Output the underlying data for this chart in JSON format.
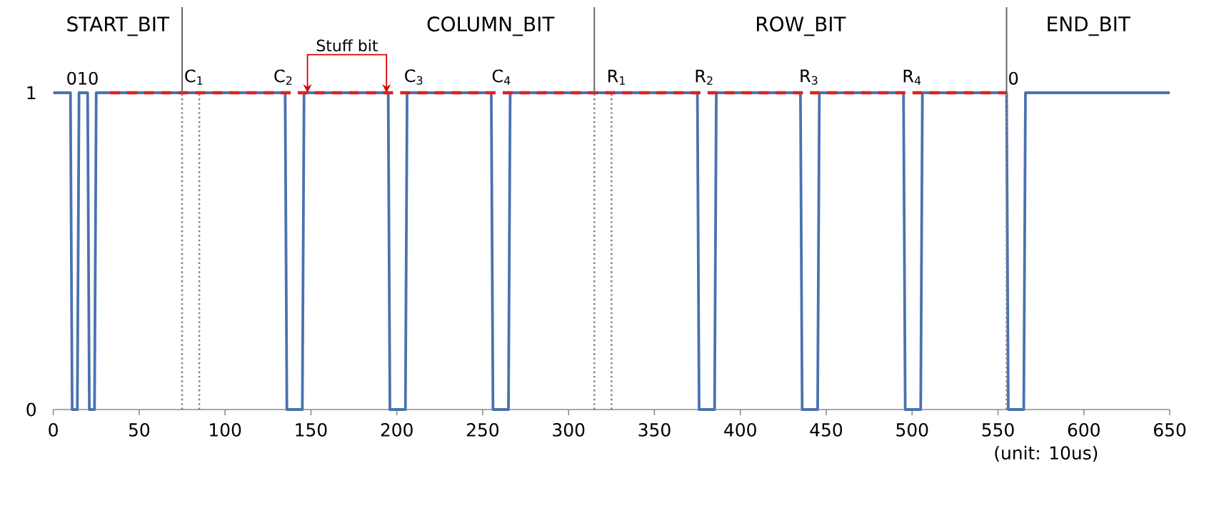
{
  "chart_data": {
    "type": "line",
    "xlabel": "(unit: 10us)",
    "xlim": [
      0,
      650
    ],
    "xticks": [
      0,
      50,
      100,
      150,
      200,
      250,
      300,
      350,
      400,
      450,
      500,
      550,
      600,
      650
    ],
    "ylim": [
      0,
      1
    ],
    "yticks": [
      0,
      1
    ],
    "grid": false,
    "marker": "none",
    "series": [
      {
        "color": "#4a72b0",
        "line_style": "solid",
        "x": [
          0,
          10,
          11,
          14,
          15,
          20,
          21,
          24,
          25,
          135,
          136,
          145,
          146,
          195,
          196,
          205,
          206,
          255,
          256,
          265,
          266,
          375,
          376,
          385,
          386,
          435,
          436,
          445,
          446,
          495,
          496,
          505,
          506,
          555,
          556,
          565,
          566,
          650
        ],
        "values": [
          1,
          1,
          0,
          0,
          1,
          1,
          0,
          0,
          1,
          1,
          0,
          0,
          1,
          1,
          0,
          0,
          1,
          1,
          0,
          0,
          1,
          1,
          0,
          0,
          1,
          1,
          0,
          0,
          1,
          1,
          0,
          0,
          1,
          1,
          0,
          0,
          1,
          1
        ]
      },
      {
        "color": "#e02020",
        "line_style": "dashed",
        "x": [
          33,
          555
        ],
        "values": [
          1,
          1
        ]
      }
    ],
    "ref_lines": [
      {
        "axis": "x",
        "value": 75,
        "color": "#808080",
        "line_style": "dotted"
      },
      {
        "axis": "x",
        "value": 315,
        "color": "#808080",
        "line_style": "dotted"
      },
      {
        "axis": "x",
        "value": 555,
        "color": "#808080",
        "line_style": "dotted"
      },
      {
        "axis": "x",
        "value": 85,
        "color": "#808080",
        "line_style": "dotted"
      },
      {
        "axis": "x",
        "value": 325,
        "color": "#808080",
        "line_style": "dotted"
      }
    ],
    "annotations": [
      "START_BIT",
      "COLUMN_BIT",
      "ROW_BIT",
      "END_BIT",
      {
        "text": "010",
        "x": 17,
        "y": 1
      },
      {
        "text": "C$_{1}$",
        "x": 82,
        "y": 1
      },
      {
        "text": "C$_{2}$",
        "x": 134,
        "y": 1
      },
      {
        "text": "C$_{3}$",
        "x": 210,
        "y": 1
      },
      {
        "text": "C$_{4}$",
        "x": 261,
        "y": 1
      },
      {
        "text": "R$_{1}$",
        "x": 328,
        "y": 1
      },
      {
        "text": "R$_{2}$",
        "x": 379,
        "y": 1
      },
      {
        "text": "R$_{3}$",
        "x": 440,
        "y": 1
      },
      {
        "text": "R$_{4}$",
        "x": 500,
        "y": 1
      },
      {
        "text": "0",
        "x": 559,
        "y": 1
      },
      {
        "text": "Stuff bit",
        "x": 171,
        "y": 1
      }
    ]
  }
}
